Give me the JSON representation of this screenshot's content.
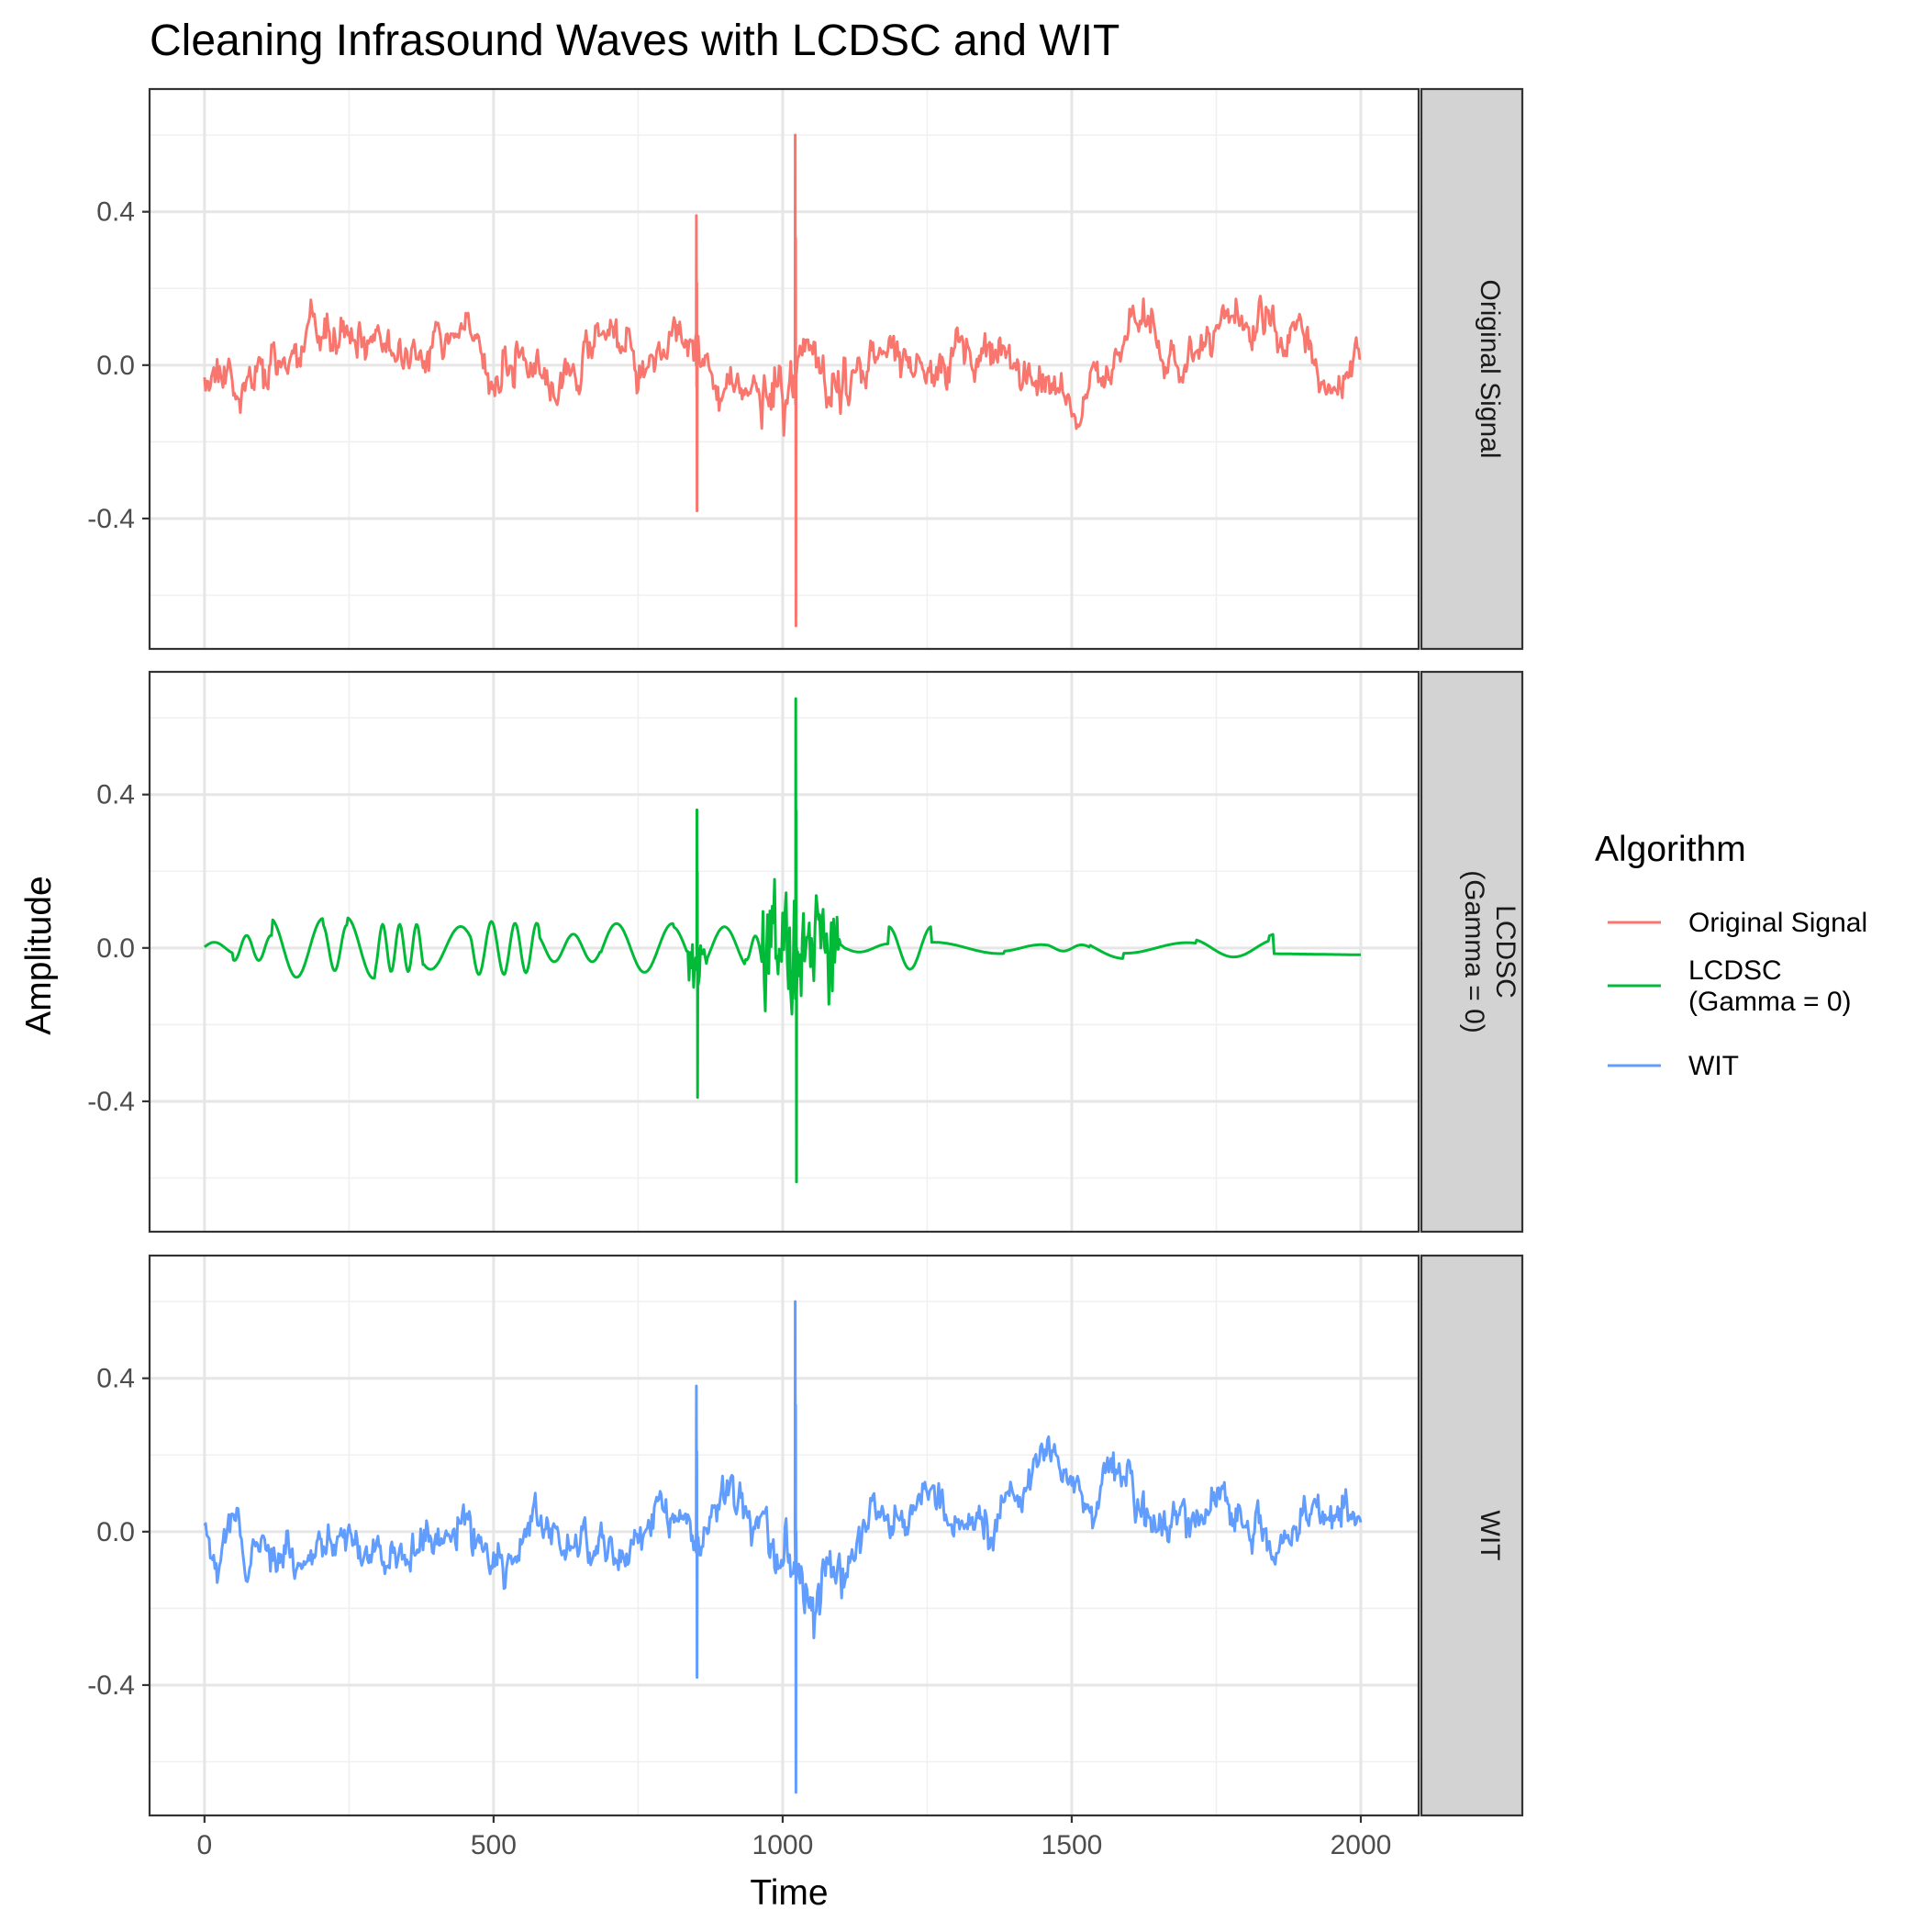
{
  "chart_data": {
    "type": "line",
    "title": "Cleaning Infrasound Waves with LCDSC and WIT",
    "xlabel": "Time",
    "ylabel": "Amplitude",
    "xlim": [
      -95,
      2100
    ],
    "ylim": [
      -0.74,
      0.72
    ],
    "x_ticks": [
      0,
      500,
      1000,
      1500,
      2000
    ],
    "x_tick_labels": [
      "0",
      "500",
      "1000",
      "1500",
      "2000"
    ],
    "y_ticks": [
      -0.4,
      0.0,
      0.4
    ],
    "y_tick_labels": [
      "-0.4",
      "0.0",
      "0.4"
    ],
    "grid": true,
    "legend": {
      "title": "Algorithm",
      "position": "right",
      "entries": [
        {
          "lines": [
            "Original Signal"
          ],
          "color": "#F8766D"
        },
        {
          "lines": [
            "LCDSC",
            "(Gamma = 0)"
          ],
          "color": "#00BA38"
        },
        {
          "lines": [
            "WIT"
          ],
          "color": "#619CFF"
        }
      ]
    },
    "facets": [
      {
        "strip_lines": [
          "Original Signal"
        ],
        "color": "#F8766D",
        "kind": "noisy",
        "seed": 11,
        "x_range": [
          0,
          2000
        ],
        "spikes": [
          {
            "x": 851,
            "values": [
              0.39,
              -0.38
            ]
          },
          {
            "x": 1022,
            "values": [
              0.6,
              -0.68
            ]
          }
        ]
      },
      {
        "strip_lines": [
          "LCDSC",
          "(Gamma = 0)"
        ],
        "color": "#00BA38",
        "kind": "smooth",
        "seed": 23,
        "x_range": [
          0,
          2000
        ],
        "spikes": [
          {
            "x": 852,
            "values": [
              0.36,
              -0.39
            ]
          },
          {
            "x": 1023,
            "values": [
              0.65,
              -0.61
            ]
          }
        ]
      },
      {
        "strip_lines": [
          "WIT"
        ],
        "color": "#619CFF",
        "kind": "noisy",
        "seed": 37,
        "x_range": [
          0,
          2000
        ],
        "spikes": [
          {
            "x": 851,
            "values": [
              0.38,
              -0.38
            ]
          },
          {
            "x": 1022,
            "values": [
              0.6,
              -0.68
            ]
          }
        ]
      }
    ]
  }
}
